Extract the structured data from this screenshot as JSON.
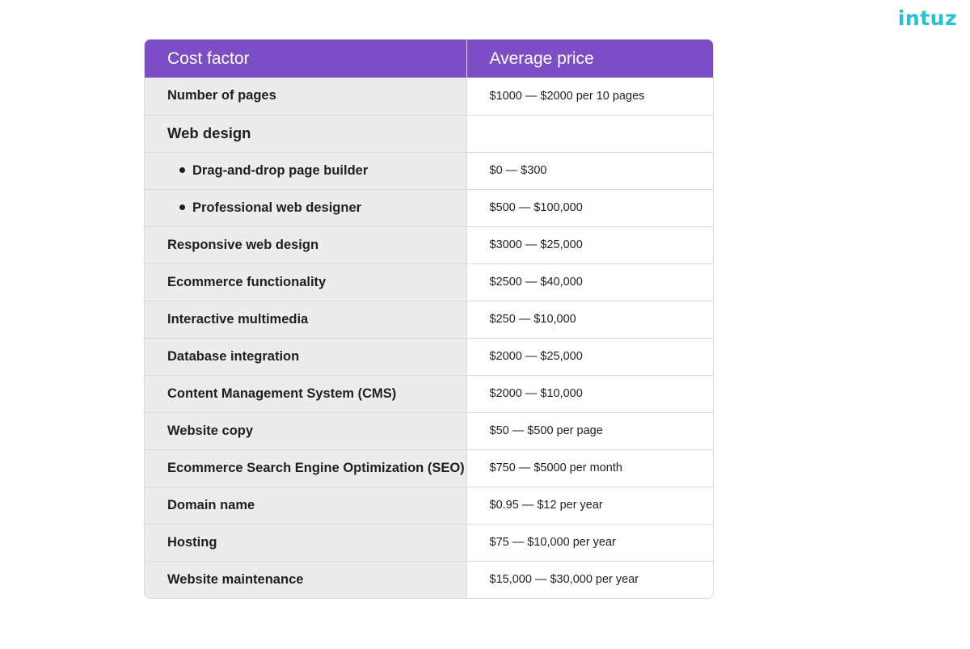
{
  "brand": {
    "logo_text": "intuz",
    "logo_color": "#23c1d4"
  },
  "table": {
    "header_color": "#7c4dc4",
    "columns": [
      "Cost factor",
      "Average price"
    ],
    "rows": [
      {
        "factor": "Number of pages",
        "price": "$1000 — $2000 per 10 pages"
      },
      {
        "factor": "Web design",
        "price": ""
      },
      {
        "factor": "Drag-and-drop page builder",
        "price": "$0 — $300"
      },
      {
        "factor": "Professional web designer",
        "price": "$500 — $100,000"
      },
      {
        "factor": "Responsive web design",
        "price": "$3000 — $25,000"
      },
      {
        "factor": "Ecommerce functionality",
        "price": "$2500 — $40,000"
      },
      {
        "factor": "Interactive multimedia",
        "price": "$250 — $10,000"
      },
      {
        "factor": "Database integration",
        "price": "$2000 — $25,000"
      },
      {
        "factor": "Content Management System (CMS)",
        "price": "$2000 — $10,000"
      },
      {
        "factor": "Website copy",
        "price": "$50 — $500 per page"
      },
      {
        "factor": "Ecommerce Search Engine Optimization (SEO)",
        "price": "$750 — $5000 per month"
      },
      {
        "factor": "Domain name",
        "price": "$0.95 — $12 per year"
      },
      {
        "factor": "Hosting",
        "price": "$75 — $10,000 per year"
      },
      {
        "factor": "Website maintenance",
        "price": "$15,000 — $30,000 per year"
      }
    ]
  }
}
